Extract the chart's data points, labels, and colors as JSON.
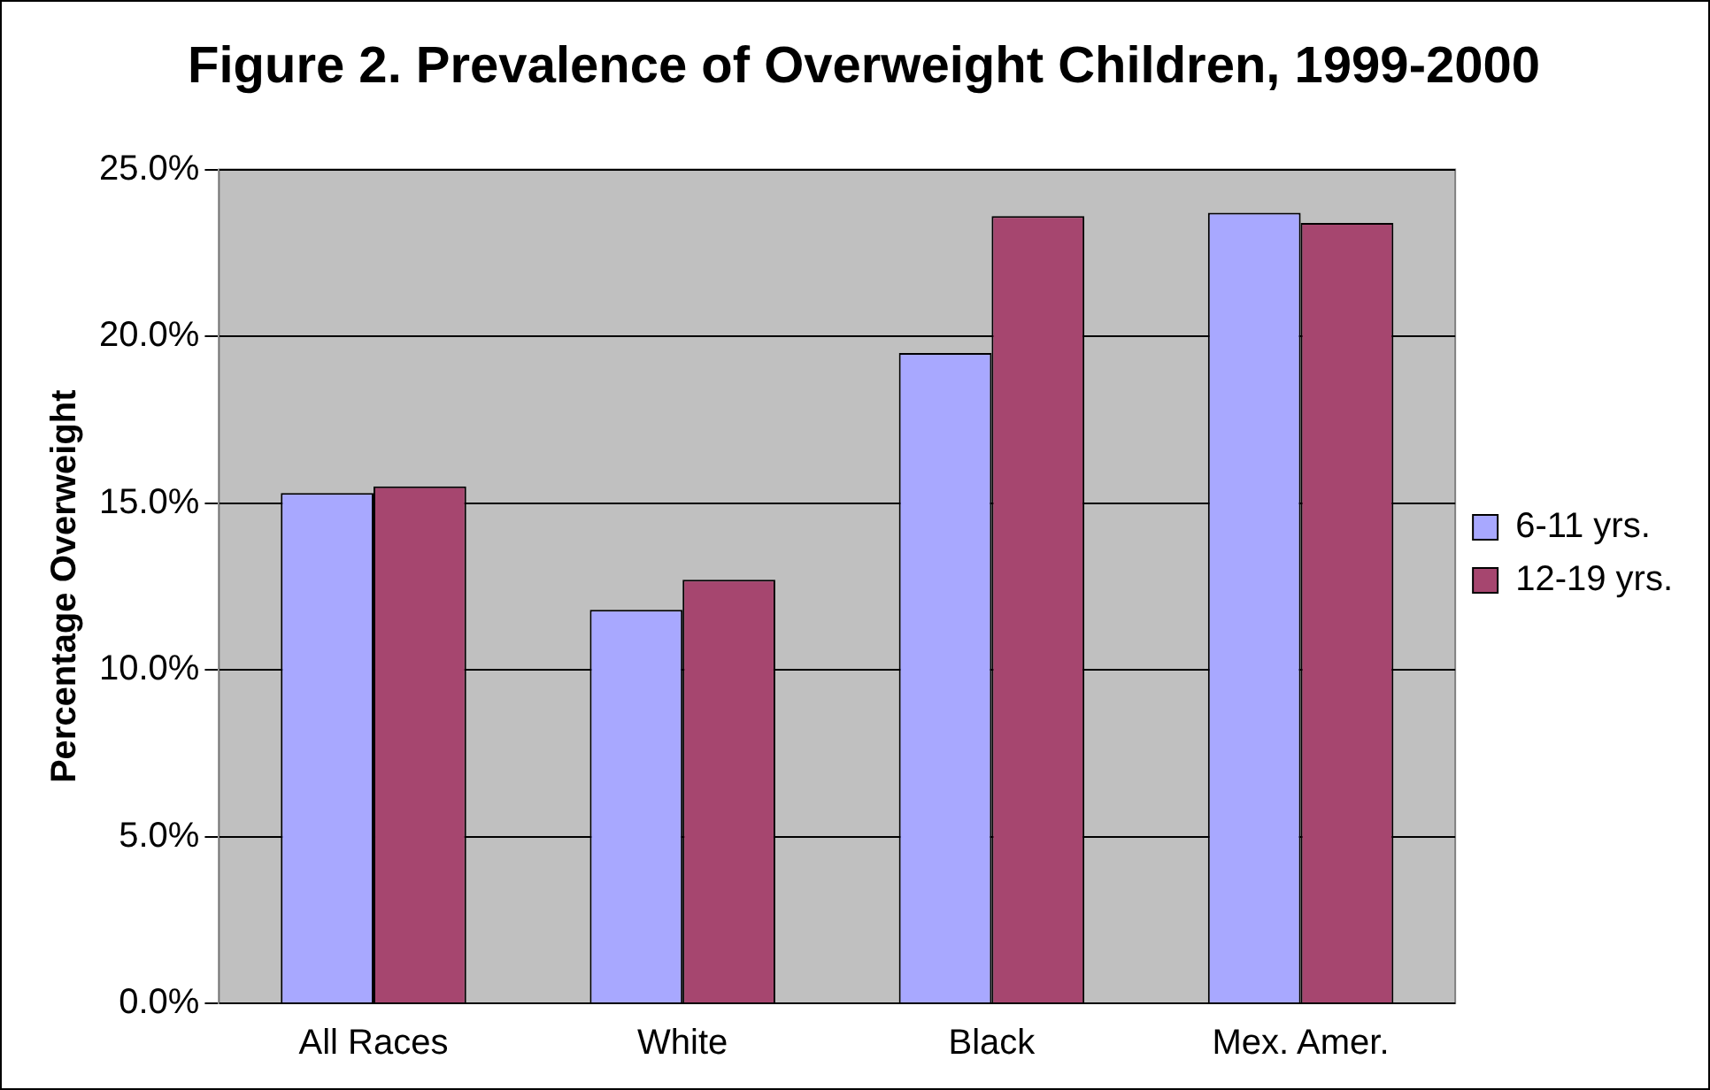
{
  "chart_data": {
    "type": "bar",
    "title": "Figure 2. Prevalence of Overweight Children, 1999-2000",
    "ylabel": "Percentage Overweight",
    "categories": [
      "All Races",
      "White",
      "Black",
      "Mex. Amer."
    ],
    "series": [
      {
        "name": "6-11 yrs.",
        "color": "#a8a8ff",
        "values": [
          15.3,
          11.8,
          19.5,
          23.7
        ]
      },
      {
        "name": "12-19 yrs.",
        "color": "#a6466f",
        "values": [
          15.5,
          12.7,
          23.6,
          23.4
        ]
      }
    ],
    "ylim": [
      0,
      25
    ],
    "yticks": [
      {
        "value": 0,
        "label": "0.0%"
      },
      {
        "value": 5,
        "label": "5.0%"
      },
      {
        "value": 10,
        "label": "10.0%"
      },
      {
        "value": 15,
        "label": "15.0%"
      },
      {
        "value": 20,
        "label": "20.0%"
      },
      {
        "value": 25,
        "label": "25.0%"
      }
    ],
    "grid": "y",
    "legend": "right"
  }
}
